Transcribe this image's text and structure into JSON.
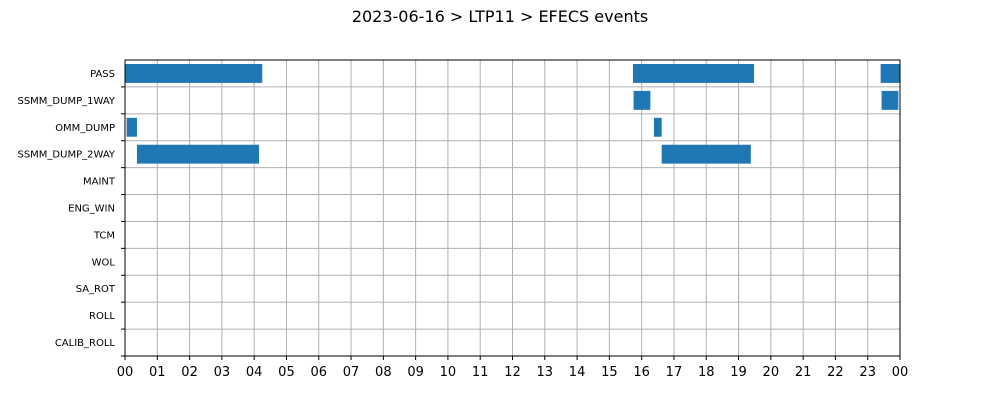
{
  "chart_data": {
    "type": "bar",
    "orientation": "horizontal-timeline",
    "title": "2023-06-16 > LTP11 > EFECS events",
    "x_unit": "hour of day",
    "xlim": [
      0,
      24
    ],
    "x_tick_labels": [
      "00",
      "01",
      "02",
      "03",
      "04",
      "05",
      "06",
      "07",
      "08",
      "09",
      "10",
      "11",
      "12",
      "13",
      "14",
      "15",
      "16",
      "17",
      "18",
      "19",
      "20",
      "21",
      "22",
      "23",
      "00"
    ],
    "grid": true,
    "bar_color": "#1f77b4",
    "categories": [
      "PASS",
      "SSMM_DUMP_1WAY",
      "OMM_DUMP",
      "SSMM_DUMP_2WAY",
      "MAINT",
      "ENG_WIN",
      "TCM",
      "WOL",
      "SA_ROT",
      "ROLL",
      "CALIB_ROLL"
    ],
    "events": [
      {
        "category": "PASS",
        "start": 0.0,
        "end": 4.25
      },
      {
        "category": "PASS",
        "start": 15.73,
        "end": 19.48
      },
      {
        "category": "PASS",
        "start": 23.4,
        "end": 24.0
      },
      {
        "category": "SSMM_DUMP_1WAY",
        "start": 15.75,
        "end": 16.27
      },
      {
        "category": "SSMM_DUMP_1WAY",
        "start": 23.43,
        "end": 23.95
      },
      {
        "category": "OMM_DUMP",
        "start": 0.05,
        "end": 0.37
      },
      {
        "category": "OMM_DUMP",
        "start": 16.38,
        "end": 16.62
      },
      {
        "category": "SSMM_DUMP_2WAY",
        "start": 0.37,
        "end": 4.15
      },
      {
        "category": "SSMM_DUMP_2WAY",
        "start": 16.62,
        "end": 19.38
      }
    ]
  }
}
